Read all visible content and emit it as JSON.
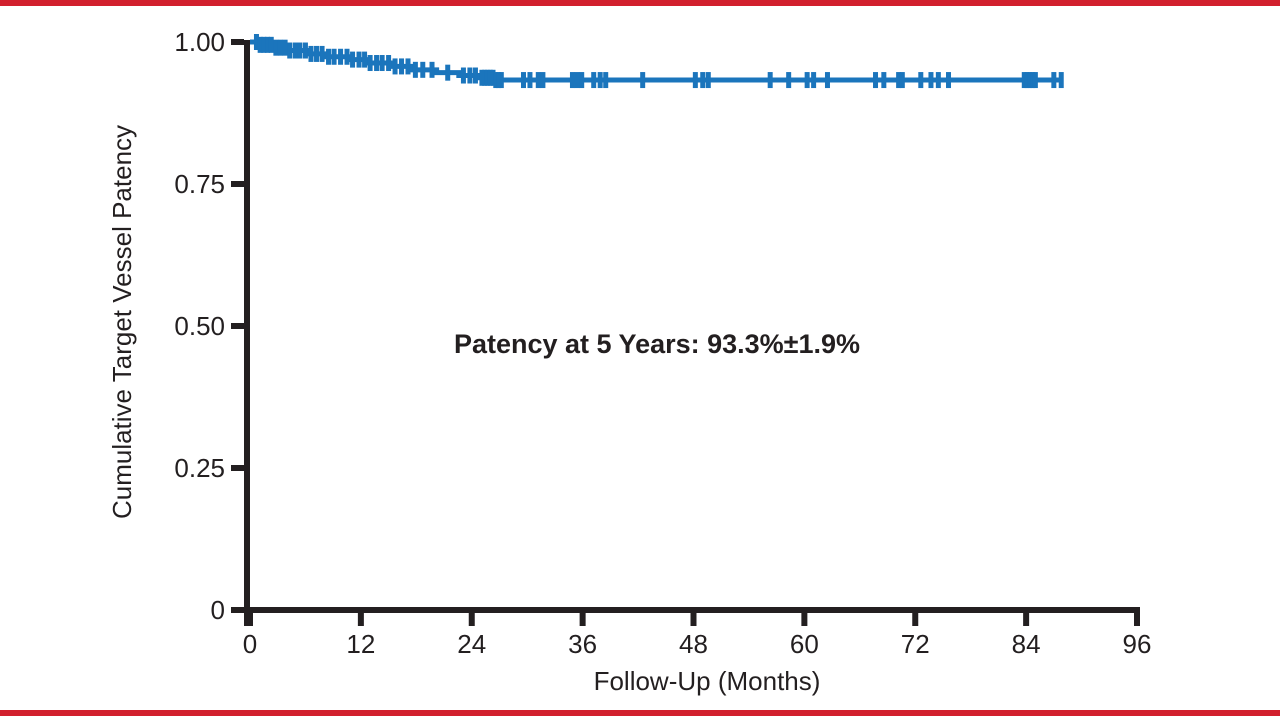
{
  "page": {
    "background": "#ffffff",
    "border_color": "#d2202e"
  },
  "chart_data": {
    "type": "line",
    "subtype": "kaplan-meier-step",
    "title": "",
    "xlabel": "Follow-Up (Months)",
    "ylabel": "Cumulative Target Vessel Patency",
    "annotation": "Patency at 5 Years: 93.3%±1.9%",
    "xlim": [
      0,
      96
    ],
    "ylim": [
      0,
      1
    ],
    "xticks": [
      0,
      12,
      24,
      36,
      48,
      60,
      72,
      84,
      96
    ],
    "yticks": [
      {
        "v": 1.0,
        "label": "1.00"
      },
      {
        "v": 0.75,
        "label": "0.75"
      },
      {
        "v": 0.5,
        "label": "0.50"
      },
      {
        "v": 0.25,
        "label": "0.25"
      },
      {
        "v": 0.0,
        "label": "0"
      }
    ],
    "grid": false,
    "legend": null,
    "line_color": "#1b75bc",
    "axis_color": "#231f20",
    "text_color": "#231f20",
    "series": [
      {
        "name": "Cumulative Target Vessel Patency",
        "steps": [
          [
            0,
            1.0
          ],
          [
            0.9,
            0.995
          ],
          [
            2.4,
            0.99
          ],
          [
            4.2,
            0.985
          ],
          [
            6.2,
            0.979
          ],
          [
            8.3,
            0.974
          ],
          [
            10.6,
            0.969
          ],
          [
            12.8,
            0.963
          ],
          [
            15.2,
            0.957
          ],
          [
            17.6,
            0.951
          ],
          [
            20.2,
            0.946
          ],
          [
            22.6,
            0.941
          ],
          [
            24.6,
            0.937
          ],
          [
            26.6,
            0.933
          ],
          [
            87.8,
            0.933
          ]
        ]
      }
    ],
    "censor_marks_months": [
      0.7,
      1.1,
      1.5,
      1.9,
      2.3,
      2.8,
      3.3,
      3.8,
      4.3,
      4.9,
      5.4,
      6.0,
      6.6,
      7.2,
      7.8,
      8.5,
      9.1,
      9.8,
      10.5,
      11.1,
      11.8,
      12.4,
      13.0,
      13.7,
      14.3,
      15.0,
      15.7,
      16.4,
      17.1,
      17.9,
      18.7,
      19.7,
      21.4,
      23.1,
      23.8,
      24.4,
      25.1,
      25.4,
      25.7,
      26.0,
      26.3,
      26.6,
      26.9,
      27.2,
      29.6,
      30.3,
      31.2,
      31.7,
      34.9,
      35.4,
      35.9,
      37.2,
      37.9,
      38.5,
      42.5,
      48.2,
      49.0,
      49.6,
      56.3,
      58.3,
      60.3,
      61.0,
      62.5,
      67.7,
      68.6,
      70.2,
      70.6,
      72.6,
      73.7,
      74.5,
      75.6,
      83.8,
      84.1,
      84.4,
      84.7,
      85.0,
      87.0,
      87.8
    ],
    "patency_at_5_years": "93.3%±1.9%"
  }
}
